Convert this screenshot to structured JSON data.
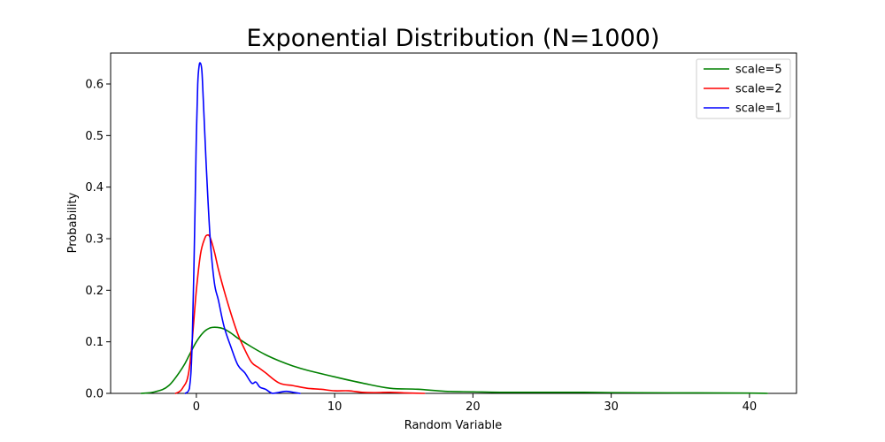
{
  "chart_data": {
    "type": "line",
    "title": "Exponential Distribution (N=1000)",
    "xlabel": "Random Variable",
    "ylabel": "Probability",
    "xlim": [
      -6.2,
      43.4
    ],
    "ylim": [
      0,
      0.66
    ],
    "xticks": [
      0,
      10,
      20,
      30,
      40
    ],
    "yticks": [
      0.0,
      0.1,
      0.2,
      0.3,
      0.4,
      0.5,
      0.6
    ],
    "xtick_labels": [
      "0",
      "10",
      "20",
      "30",
      "40"
    ],
    "ytick_labels": [
      "0.0",
      "0.1",
      "0.2",
      "0.3",
      "0.4",
      "0.5",
      "0.6"
    ],
    "grid": false,
    "legend_position": "top-right",
    "series": [
      {
        "name": "scale=5",
        "color": "#008000",
        "x": [
          -4.0,
          -3.0,
          -2.0,
          -1.0,
          -0.5,
          0.0,
          0.5,
          1.0,
          1.5,
          2.0,
          2.5,
          3.0,
          4.0,
          5.0,
          6.0,
          7.0,
          8.0,
          10.0,
          12.0,
          14.0,
          16.0,
          18.0,
          20.0,
          22.0,
          25.0,
          28.0,
          30.0,
          35.0,
          40.0,
          41.3
        ],
        "y": [
          0.0,
          0.003,
          0.015,
          0.05,
          0.075,
          0.1,
          0.118,
          0.127,
          0.128,
          0.125,
          0.117,
          0.107,
          0.09,
          0.075,
          0.063,
          0.053,
          0.045,
          0.032,
          0.02,
          0.01,
          0.008,
          0.004,
          0.003,
          0.002,
          0.002,
          0.002,
          0.0015,
          0.001,
          0.0005,
          0.0
        ]
      },
      {
        "name": "scale=2",
        "color": "#ff0000",
        "x": [
          -1.5,
          -1.0,
          -0.5,
          0.0,
          0.3,
          0.6,
          0.8,
          1.0,
          1.3,
          1.6,
          2.0,
          2.5,
          3.0,
          3.5,
          4.0,
          4.5,
          5.0,
          6.0,
          7.0,
          8.0,
          9.0,
          10.0,
          11.0,
          12.0,
          13.0,
          14.0,
          15.0,
          16.5
        ],
        "y": [
          0.0,
          0.01,
          0.05,
          0.2,
          0.27,
          0.3,
          0.307,
          0.302,
          0.275,
          0.24,
          0.2,
          0.155,
          0.115,
          0.085,
          0.06,
          0.05,
          0.04,
          0.02,
          0.015,
          0.01,
          0.008,
          0.005,
          0.005,
          0.002,
          0.0015,
          0.002,
          0.001,
          0.0
        ]
      },
      {
        "name": "scale=1",
        "color": "#0000ff",
        "x": [
          -0.8,
          -0.5,
          -0.3,
          -0.1,
          0.0,
          0.1,
          0.2,
          0.3,
          0.4,
          0.5,
          0.7,
          1.0,
          1.3,
          1.6,
          2.0,
          2.5,
          3.0,
          3.5,
          4.0,
          4.3,
          4.6,
          5.0,
          5.5,
          6.0,
          6.5,
          7.0,
          7.5
        ],
        "y": [
          0.0,
          0.01,
          0.1,
          0.35,
          0.5,
          0.6,
          0.635,
          0.64,
          0.625,
          0.57,
          0.45,
          0.3,
          0.215,
          0.18,
          0.13,
          0.09,
          0.055,
          0.04,
          0.02,
          0.022,
          0.012,
          0.008,
          0.0,
          0.002,
          0.004,
          0.002,
          0.0
        ]
      }
    ]
  }
}
